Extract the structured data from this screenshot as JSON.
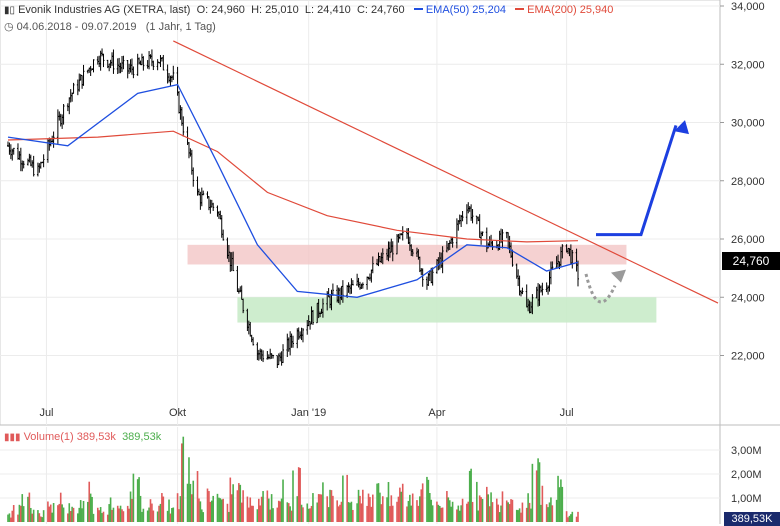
{
  "header": {
    "name": "Evonik Industries AG (XETRA, last)",
    "open_label": "O:",
    "open": "24,960",
    "high_label": "H:",
    "high": "25,010",
    "low_label": "L:",
    "low": "24,410",
    "close_label": "C:",
    "close": "24,760",
    "ema50_label": "EMA(50)",
    "ema50": "25,204",
    "ema200_label": "EMA(200)",
    "ema200": "25,940",
    "period": "04.06.2018 - 09.07.2019",
    "interval": "(1 Jahr, 1 Tag)"
  },
  "volume_header": {
    "label": "Volume(1)",
    "value1": "389,53k",
    "value2": "389,53k"
  },
  "last_price_tag": "24,760",
  "last_volume_tag": "389,53K",
  "colors": {
    "candles": "#000000",
    "ema50": "#1f4fe0",
    "ema200": "#e04a3a",
    "trendline": "#e04a3a",
    "resistance_zone": "#f3c6c6",
    "support_zone": "#c9ebc9",
    "forecast_arrow": "#1c3fe0",
    "dotted_arrow": "#9a9a9a",
    "volume_up": "#4cae4c",
    "volume_down": "#e05a5a"
  },
  "chart_data": {
    "type": "line",
    "price_axis": {
      "ticks": [
        22000,
        24000,
        26000,
        28000,
        30000,
        32000,
        34000
      ],
      "tick_labels": [
        "22,000",
        "24,000",
        "26,000",
        "28,000",
        "30,000",
        "32,000",
        "34,000"
      ],
      "ylim": [
        20000,
        34000
      ]
    },
    "x_axis": {
      "tick_labels": [
        "Jul",
        "Okt",
        "Jan '19",
        "Apr",
        "Jul"
      ],
      "grid": true
    },
    "series": [
      {
        "name": "Evonik Industries AG",
        "x": [
          "2018-06-04",
          "2018-06-25",
          "2018-07-16",
          "2018-08-06",
          "2018-08-27",
          "2018-09-17",
          "2018-09-28",
          "2018-10-15",
          "2018-10-29",
          "2018-11-12",
          "2018-11-26",
          "2018-12-10",
          "2018-12-24",
          "2019-01-14",
          "2019-02-04",
          "2019-02-25",
          "2019-03-11",
          "2019-03-25",
          "2019-04-08",
          "2019-04-22",
          "2019-05-06",
          "2019-05-20",
          "2019-06-03",
          "2019-06-17",
          "2019-07-01",
          "2019-07-09"
        ],
        "close": [
          29.2,
          28.3,
          30.8,
          32.3,
          31.8,
          32.2,
          31.5,
          27.5,
          27.0,
          24.3,
          22.1,
          21.8,
          22.8,
          23.9,
          24.4,
          25.5,
          26.2,
          24.5,
          25.6,
          27.2,
          25.8,
          26.0,
          23.6,
          24.5,
          25.8,
          24.76
        ]
      },
      {
        "name": "EMA(50)",
        "x": [
          "2018-06-04",
          "2018-07-16",
          "2018-09-03",
          "2018-10-01",
          "2018-10-29",
          "2018-11-26",
          "2018-12-24",
          "2019-02-04",
          "2019-03-18",
          "2019-04-22",
          "2019-05-20",
          "2019-06-17",
          "2019-07-09"
        ],
        "values": [
          29.5,
          29.2,
          31.0,
          31.3,
          28.6,
          25.8,
          24.2,
          24.0,
          24.6,
          25.8,
          25.7,
          24.9,
          25.204
        ]
      },
      {
        "name": "EMA(200)",
        "x": [
          "2018-06-04",
          "2018-08-06",
          "2018-09-28",
          "2018-10-29",
          "2018-12-03",
          "2019-01-14",
          "2019-03-04",
          "2019-04-22",
          "2019-06-03",
          "2019-07-09"
        ],
        "values": [
          29.4,
          29.5,
          29.7,
          29.0,
          27.6,
          26.8,
          26.3,
          26.0,
          25.9,
          25.94
        ]
      }
    ],
    "volume": {
      "axis_ticks": [
        "1,00M",
        "2,00M",
        "3,00M"
      ],
      "note": "daily volume bars, green up / red down",
      "values_m": [
        0.35,
        0.6,
        0.9,
        0.5,
        0.4,
        0.7,
        1.1,
        0.6,
        0.5,
        0.8,
        1.4,
        0.5,
        0.6,
        0.9,
        0.7,
        1.0,
        1.5,
        0.6,
        0.8,
        1.1,
        0.7,
        0.9,
        3.1,
        1.6,
        0.8,
        1.2,
        1.0,
        0.7,
        1.5,
        1.3,
        0.8,
        1.0,
        1.2,
        0.9,
        1.3,
        0.7,
        1.8,
        1.1,
        0.9,
        1.5,
        1.2,
        0.8,
        1.6,
        1.0,
        1.4,
        0.9,
        1.7,
        1.2,
        0.8,
        1.3,
        1.0,
        1.1,
        2.2,
        0.9,
        0.8,
        1.0,
        0.7,
        1.2,
        1.6,
        0.9,
        1.1,
        0.8,
        1.3,
        1.0,
        0.7,
        1.0,
        2.6,
        1.1,
        0.8,
        1.5,
        0.39
      ]
    }
  }
}
